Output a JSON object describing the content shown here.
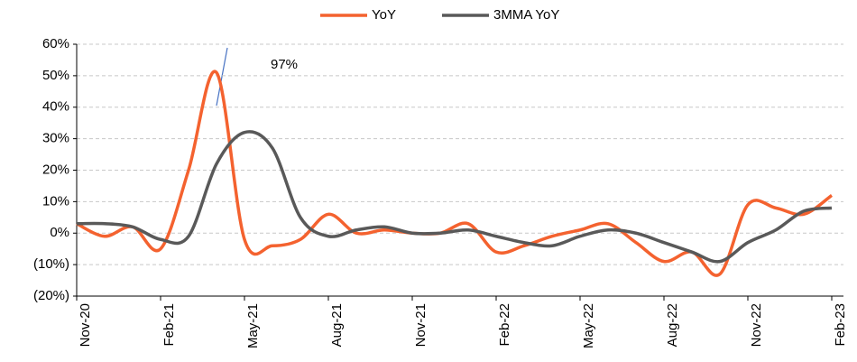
{
  "chart_data": {
    "type": "line",
    "categories": [
      "Nov-20",
      null,
      null,
      "Feb-21",
      null,
      null,
      "May-21",
      null,
      null,
      "Aug-21",
      null,
      null,
      "Nov-21",
      null,
      null,
      "Feb-22",
      null,
      null,
      "May-22",
      null,
      null,
      "Aug-22",
      null,
      null,
      "Nov-22",
      null,
      null,
      "Feb-23"
    ],
    "series": [
      {
        "name": "YoY",
        "color": "#f4622f",
        "values": [
          3,
          -1,
          2,
          -5,
          20,
          51,
          -2,
          -4,
          -2,
          6,
          0,
          1,
          0,
          0,
          3,
          -6,
          -4,
          -1,
          1,
          3,
          -3,
          -9,
          -6,
          -13,
          9,
          8,
          6,
          12
        ]
      },
      {
        "name": "3MMA YoY",
        "color": "#595959",
        "values": [
          3,
          3,
          2,
          -2,
          -1,
          22,
          32,
          27,
          5,
          -1,
          1,
          2,
          0,
          0,
          1,
          -1,
          -3,
          -4,
          -1,
          1,
          0,
          -3,
          -6,
          -9,
          -3,
          1,
          7,
          8
        ]
      }
    ],
    "annotations": [
      "97%"
    ],
    "ylim": [
      -20,
      60
    ],
    "yticks": [
      {
        "value": -20,
        "label": "(20%)"
      },
      {
        "value": -10,
        "label": "(10%)"
      },
      {
        "value": 0,
        "label": "0%"
      },
      {
        "value": 10,
        "label": "10%"
      },
      {
        "value": 20,
        "label": "20%"
      },
      {
        "value": 30,
        "label": "30%"
      },
      {
        "value": 40,
        "label": "40%"
      },
      {
        "value": 50,
        "label": "50%"
      },
      {
        "value": 60,
        "label": "60%"
      }
    ],
    "grid": true
  }
}
